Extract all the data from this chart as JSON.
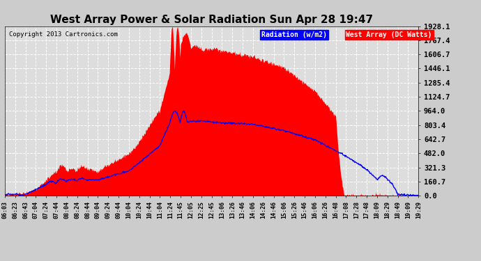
{
  "title": "West Array Power & Solar Radiation Sun Apr 28 19:47",
  "copyright": "Copyright 2013 Cartronics.com",
  "legend_radiation": "Radiation (w/m2)",
  "legend_west": "West Array (DC Watts)",
  "yticks": [
    0.0,
    160.7,
    321.3,
    482.0,
    642.7,
    803.4,
    964.0,
    1124.7,
    1285.4,
    1446.1,
    1606.7,
    1767.4,
    1928.1
  ],
  "ymax": 1928.1,
  "ymin": 0.0,
  "background_color": "#cccccc",
  "plot_bg_color": "#dddddd",
  "grid_color": "#ffffff",
  "red_fill_color": "#ff0000",
  "blue_line_color": "#0000ff",
  "xtick_labels": [
    "06:03",
    "06:23",
    "06:43",
    "07:04",
    "07:24",
    "07:44",
    "08:04",
    "08:24",
    "08:44",
    "09:04",
    "09:24",
    "09:44",
    "10:04",
    "10:24",
    "10:44",
    "11:04",
    "11:24",
    "11:45",
    "12:05",
    "12:25",
    "12:45",
    "13:06",
    "13:26",
    "13:46",
    "14:06",
    "14:26",
    "14:46",
    "15:06",
    "15:26",
    "15:46",
    "16:06",
    "16:26",
    "16:48",
    "17:08",
    "17:28",
    "17:48",
    "18:09",
    "18:29",
    "18:49",
    "19:09",
    "19:29"
  ],
  "n_points": 820
}
